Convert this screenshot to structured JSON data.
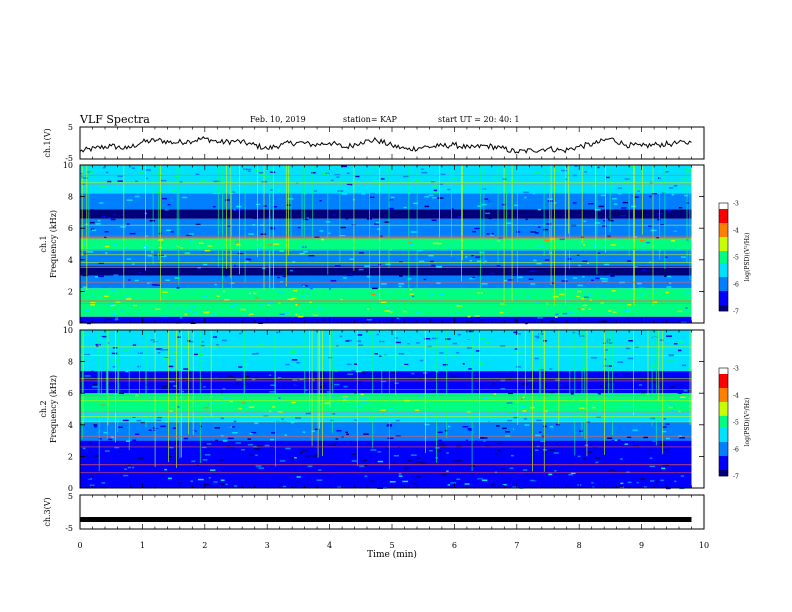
{
  "header": {
    "title": "VLF Spectra",
    "date": "Feb. 10, 2019",
    "station": "station= KAP",
    "start": "start  UT =   20: 40: 1"
  },
  "chart_data": [
    {
      "type": "line",
      "panel": "ch1-voltage",
      "ylabel": "ch.1(V)",
      "ylim": [
        -5,
        5
      ],
      "yticks": [
        "5",
        "-5"
      ],
      "xlim": [
        0,
        10
      ],
      "series_color": "#000000",
      "x": [
        0,
        0.25,
        0.5,
        0.75,
        1.0,
        1.25,
        1.5,
        1.75,
        2.0,
        2.25,
        2.5,
        2.75,
        3.0,
        3.25,
        3.5,
        3.75,
        4.0,
        4.25,
        4.5,
        4.75,
        5.0,
        5.25,
        5.5,
        5.75,
        6.0,
        6.25,
        6.5,
        6.75,
        7.0,
        7.25,
        7.5,
        7.75,
        8.0,
        8.25,
        8.5,
        8.75,
        9.0,
        9.25,
        9.5,
        9.8
      ],
      "y": [
        -2.6,
        -1.6,
        -0.9,
        -1.8,
        0.3,
        0.9,
        0.1,
        0.6,
        1.4,
        0.2,
        0.6,
        -0.4,
        -1.8,
        -0.4,
        0.2,
        -0.6,
        0.1,
        -1.4,
        0.3,
        0.9,
        -0.8,
        -2.0,
        -1.3,
        -1.0,
        -0.6,
        -1.6,
        -0.8,
        -1.6,
        -2.8,
        -2.3,
        -1.7,
        -2.4,
        -1.1,
        -0.2,
        1.4,
        -0.6,
        -1.0,
        -0.5,
        -0.2,
        0.2
      ]
    },
    {
      "type": "heatmap",
      "panel": "ch1-spectrogram",
      "ylabel_lines": [
        "ch.1",
        "Frequency (kHz)"
      ],
      "ylim": [
        0,
        10
      ],
      "yticks": [
        "0",
        "2",
        "4",
        "6",
        "8",
        "10"
      ],
      "xlim": [
        0,
        10
      ],
      "colorbar": {
        "label": "log(PSD)(V²/Hz)",
        "ticks": [
          "-3",
          "-4",
          "-5",
          "-6",
          "-7"
        ],
        "range": [
          -7,
          -3
        ]
      },
      "bands": [
        {
          "f": [
            0.0,
            0.4
          ],
          "level": -6.6
        },
        {
          "f": [
            0.4,
            2.2
          ],
          "level": -5.0
        },
        {
          "f": [
            2.2,
            3.0
          ],
          "level": -6.0
        },
        {
          "f": [
            3.0,
            3.6
          ],
          "level": -6.8
        },
        {
          "f": [
            3.6,
            4.6
          ],
          "level": -6.0
        },
        {
          "f": [
            4.6,
            5.4
          ],
          "level": -5.0
        },
        {
          "f": [
            5.4,
            6.6
          ],
          "level": -6.1
        },
        {
          "f": [
            6.6,
            7.2
          ],
          "level": -6.9
        },
        {
          "f": [
            7.2,
            8.2
          ],
          "level": -6.0
        },
        {
          "f": [
            8.2,
            10.0
          ],
          "level": -5.6
        }
      ]
    },
    {
      "type": "heatmap",
      "panel": "ch2-spectrogram",
      "ylabel_lines": [
        "ch.2",
        "Frequency (kHz)"
      ],
      "ylim": [
        0,
        10
      ],
      "yticks": [
        "0",
        "2",
        "4",
        "6",
        "8",
        "10"
      ],
      "xlim": [
        0,
        10
      ],
      "colorbar": {
        "label": "log(PSD)(V²/Hz)",
        "ticks": [
          "-3",
          "-4",
          "-5",
          "-6",
          "-7"
        ],
        "range": [
          -7,
          -3
        ]
      },
      "bands": [
        {
          "f": [
            0.0,
            1.4
          ],
          "level": -6.3
        },
        {
          "f": [
            1.4,
            3.0
          ],
          "level": -6.5
        },
        {
          "f": [
            3.0,
            4.2
          ],
          "level": -6.2
        },
        {
          "f": [
            4.2,
            4.8
          ],
          "level": -5.6
        },
        {
          "f": [
            4.8,
            6.0
          ],
          "level": -5.0
        },
        {
          "f": [
            6.0,
            7.4
          ],
          "level": -6.6
        },
        {
          "f": [
            7.4,
            10.0
          ],
          "level": -5.7
        }
      ]
    },
    {
      "type": "line",
      "panel": "ch3-voltage",
      "ylabel": "ch.3(V)",
      "ylim": [
        -5,
        5
      ],
      "yticks": [
        "5",
        "-5"
      ],
      "xlim": [
        0,
        10
      ],
      "series_color": "#000000",
      "x": [
        0,
        9.8
      ],
      "y": [
        -2.2,
        -2.2
      ]
    }
  ],
  "xaxis": {
    "label": "Time (min)",
    "ticks": [
      "0",
      "1",
      "2",
      "3",
      "4",
      "5",
      "6",
      "7",
      "8",
      "9",
      "10"
    ],
    "data_end": 9.8
  },
  "colors": {
    "colormap": [
      "#00007a",
      "#0000ff",
      "#0080ff",
      "#00e0ff",
      "#00ff80",
      "#c8ff00",
      "#ff8000",
      "#ff0000",
      "#ffffff"
    ]
  }
}
